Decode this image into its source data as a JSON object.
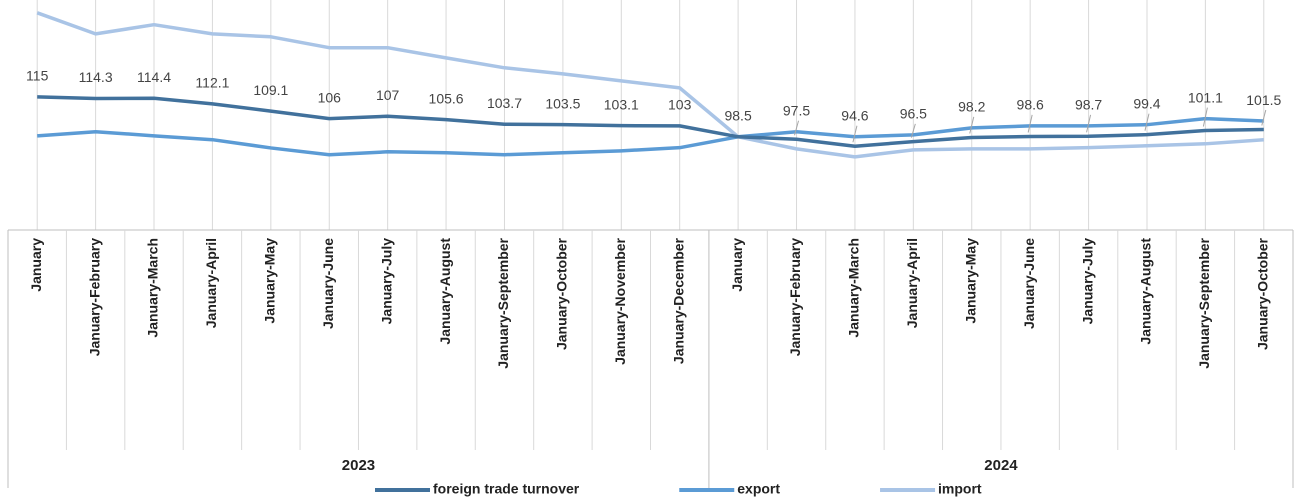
{
  "chart_data": {
    "type": "line",
    "category_groups": [
      {
        "name": "2023",
        "categories": [
          "January",
          "January-February",
          "January-March",
          "January-April",
          "January-May",
          "January-June",
          "January-July",
          "January-August",
          "January-September",
          "January-October",
          "January-November",
          "January-December"
        ]
      },
      {
        "name": "2024",
        "categories": [
          "January",
          "January-February",
          "January-March",
          "January-April",
          "January-May",
          "January-June",
          "January-July",
          "January-August",
          "January-September",
          "January-October"
        ]
      }
    ],
    "series": [
      {
        "name": "foreign trade turnover",
        "color": "#41719c",
        "values": [
          115.0,
          114.3,
          114.4,
          112.1,
          109.1,
          106.0,
          107.0,
          105.6,
          103.7,
          103.5,
          103.1,
          103.0,
          98.5,
          97.5,
          94.6,
          96.5,
          98.2,
          98.6,
          98.7,
          99.4,
          101.1,
          101.5
        ],
        "data_labels": true
      },
      {
        "name": "export",
        "color": "#5b9bd5",
        "values": [
          98.9,
          100.6,
          98.9,
          97.3,
          93.9,
          91.1,
          92.3,
          91.9,
          91.1,
          91.9,
          92.7,
          94.0,
          98.5,
          100.6,
          98.5,
          99.3,
          102.2,
          103.0,
          103.0,
          103.5,
          106.0,
          105.0
        ]
      },
      {
        "name": "import",
        "color": "#a9c4e6",
        "values": [
          149.7,
          141.0,
          144.8,
          141.0,
          139.8,
          135.3,
          135.3,
          131.1,
          127.0,
          124.5,
          121.6,
          118.7,
          98.5,
          93.5,
          90.2,
          93.1,
          93.5,
          93.5,
          94.0,
          94.8,
          95.6,
          97.3
        ]
      }
    ],
    "ylim": [
      60,
      155
    ],
    "legend": "bottom"
  }
}
